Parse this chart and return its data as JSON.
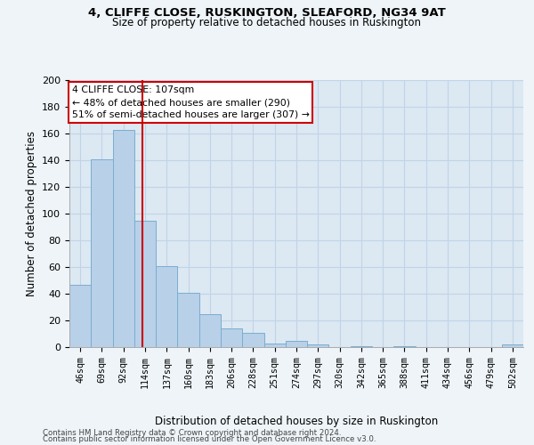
{
  "title": "4, CLIFFE CLOSE, RUSKINGTON, SLEAFORD, NG34 9AT",
  "subtitle": "Size of property relative to detached houses in Ruskington",
  "xlabel": "Distribution of detached houses by size in Ruskington",
  "ylabel": "Number of detached properties",
  "bar_labels": [
    "46sqm",
    "69sqm",
    "92sqm",
    "114sqm",
    "137sqm",
    "160sqm",
    "183sqm",
    "206sqm",
    "228sqm",
    "251sqm",
    "274sqm",
    "297sqm",
    "320sqm",
    "342sqm",
    "365sqm",
    "388sqm",
    "411sqm",
    "434sqm",
    "456sqm",
    "479sqm",
    "502sqm"
  ],
  "bar_values": [
    47,
    141,
    163,
    95,
    61,
    41,
    25,
    14,
    11,
    3,
    5,
    2,
    0,
    1,
    0,
    1,
    0,
    0,
    0,
    0,
    2
  ],
  "bar_color": "#b8d0e8",
  "bar_edgecolor": "#7aadd0",
  "property_line_x": 2.87,
  "annotation_text": "4 CLIFFE CLOSE: 107sqm\n← 48% of detached houses are smaller (290)\n51% of semi-detached houses are larger (307) →",
  "annotation_box_color": "#ffffff",
  "annotation_box_edgecolor": "#cc0000",
  "vline_color": "#cc0000",
  "grid_color": "#c0d4e8",
  "plot_bg_color": "#dce8f2",
  "fig_bg_color": "#eef4f8",
  "ylim": [
    0,
    200
  ],
  "yticks": [
    0,
    20,
    40,
    60,
    80,
    100,
    120,
    140,
    160,
    180,
    200
  ],
  "footer_line1": "Contains HM Land Registry data © Crown copyright and database right 2024.",
  "footer_line2": "Contains public sector information licensed under the Open Government Licence v3.0."
}
